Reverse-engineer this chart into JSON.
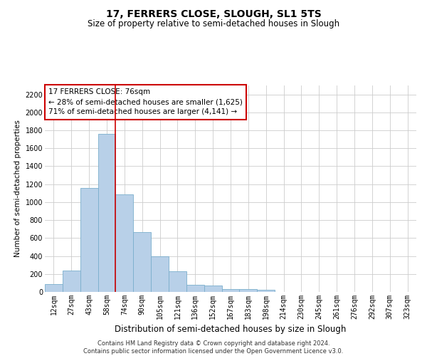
{
  "title": "17, FERRERS CLOSE, SLOUGH, SL1 5TS",
  "subtitle": "Size of property relative to semi-detached houses in Slough",
  "xlabel": "Distribution of semi-detached houses by size in Slough",
  "ylabel": "Number of semi-detached properties",
  "bar_labels": [
    "12sqm",
    "27sqm",
    "43sqm",
    "58sqm",
    "74sqm",
    "90sqm",
    "105sqm",
    "121sqm",
    "136sqm",
    "152sqm",
    "167sqm",
    "183sqm",
    "198sqm",
    "214sqm",
    "230sqm",
    "245sqm",
    "261sqm",
    "276sqm",
    "292sqm",
    "307sqm",
    "323sqm"
  ],
  "bar_values": [
    90,
    235,
    1160,
    1760,
    1090,
    670,
    400,
    230,
    80,
    75,
    35,
    30,
    20,
    0,
    0,
    0,
    0,
    0,
    0,
    0,
    0
  ],
  "vline_pos": 3.5,
  "annotation_title": "17 FERRERS CLOSE: 76sqm",
  "annotation_line1": "← 28% of semi-detached houses are smaller (1,625)",
  "annotation_line2": "71% of semi-detached houses are larger (4,141) →",
  "bar_color": "#b8d0e8",
  "bar_edge_color": "#7aaecc",
  "vline_color": "#cc0000",
  "annotation_box_color": "#ffffff",
  "annotation_box_edge": "#cc0000",
  "grid_color": "#cccccc",
  "background_color": "#ffffff",
  "ylim": [
    0,
    2300
  ],
  "yticks": [
    0,
    200,
    400,
    600,
    800,
    1000,
    1200,
    1400,
    1600,
    1800,
    2000,
    2200
  ],
  "footer_line1": "Contains HM Land Registry data © Crown copyright and database right 2024.",
  "footer_line2": "Contains public sector information licensed under the Open Government Licence v3.0.",
  "title_fontsize": 10,
  "subtitle_fontsize": 8.5,
  "ylabel_fontsize": 7.5,
  "xlabel_fontsize": 8.5,
  "tick_fontsize": 7,
  "annotation_fontsize": 7.5,
  "footer_fontsize": 6
}
